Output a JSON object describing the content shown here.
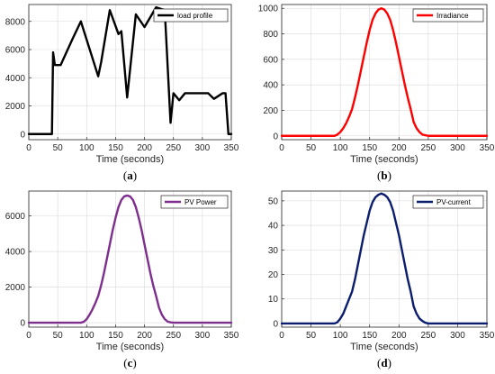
{
  "chart_data": [
    {
      "type": "line",
      "panel_label": "a",
      "xlabel": "Time (seconds)",
      "ylabel": "",
      "xlim": [
        0,
        350
      ],
      "ylim": [
        -400,
        9200
      ],
      "xticks": [
        0,
        50,
        100,
        150,
        200,
        250,
        300,
        350
      ],
      "yticks": [
        0,
        2000,
        4000,
        6000,
        8000
      ],
      "grid": true,
      "legend": "top-right",
      "series": [
        {
          "name": "load profile",
          "color": "#000000",
          "x": [
            0,
            40,
            42,
            45,
            48,
            55,
            75,
            90,
            120,
            125,
            140,
            155,
            160,
            170,
            185,
            200,
            220,
            235,
            245,
            250,
            260,
            270,
            310,
            320,
            335,
            340,
            345,
            350
          ],
          "y": [
            0,
            0,
            5800,
            4900,
            4900,
            4900,
            6700,
            8000,
            4100,
            5100,
            8800,
            7100,
            7300,
            2600,
            8500,
            7600,
            9000,
            8800,
            800,
            2900,
            2400,
            2900,
            2900,
            2500,
            2900,
            2900,
            0,
            0
          ]
        }
      ]
    },
    {
      "type": "line",
      "panel_label": "b",
      "xlabel": "Time (seconds)",
      "ylabel": "",
      "xlim": [
        0,
        350
      ],
      "ylim": [
        -30,
        1030
      ],
      "xticks": [
        0,
        50,
        100,
        150,
        200,
        250,
        300,
        350
      ],
      "yticks": [
        0,
        200,
        400,
        600,
        800,
        1000
      ],
      "grid": true,
      "legend": "top-right",
      "series": [
        {
          "name": "Irradiance",
          "color": "#ff0000",
          "x": [
            0,
            90,
            95,
            100,
            105,
            110,
            115,
            120,
            125,
            130,
            135,
            140,
            145,
            150,
            155,
            160,
            165,
            170,
            175,
            180,
            185,
            190,
            195,
            200,
            205,
            210,
            215,
            220,
            225,
            230,
            235,
            240,
            245,
            250,
            255,
            260,
            350
          ],
          "y": [
            0,
            0,
            10,
            30,
            60,
            100,
            150,
            210,
            300,
            400,
            510,
            620,
            730,
            830,
            910,
            960,
            990,
            1000,
            990,
            960,
            910,
            830,
            730,
            620,
            510,
            400,
            300,
            210,
            110,
            60,
            30,
            10,
            5,
            0,
            0,
            0,
            0
          ]
        }
      ]
    },
    {
      "type": "line",
      "panel_label": "c",
      "xlabel": "Time (seconds)",
      "ylabel": "",
      "xlim": [
        0,
        350
      ],
      "ylim": [
        -250,
        7400
      ],
      "xticks": [
        0,
        50,
        100,
        150,
        200,
        250,
        300,
        350
      ],
      "yticks": [
        0,
        2000,
        4000,
        6000
      ],
      "grid": true,
      "legend": "top-right",
      "series": [
        {
          "name": "PV Power",
          "color": "#7e2f8e",
          "x": [
            0,
            90,
            95,
            100,
            105,
            110,
            115,
            120,
            125,
            130,
            135,
            140,
            145,
            150,
            155,
            160,
            165,
            170,
            175,
            180,
            185,
            190,
            195,
            200,
            205,
            210,
            215,
            220,
            225,
            230,
            235,
            240,
            245,
            250,
            255,
            260,
            350
          ],
          "y": [
            0,
            0,
            50,
            200,
            450,
            750,
            1100,
            1500,
            2100,
            2800,
            3600,
            4400,
            5200,
            5900,
            6500,
            6900,
            7100,
            7150,
            7100,
            6900,
            6500,
            5900,
            5200,
            4400,
            3600,
            2800,
            2100,
            1500,
            850,
            450,
            200,
            60,
            20,
            0,
            0,
            0,
            0
          ]
        }
      ]
    },
    {
      "type": "line",
      "panel_label": "d",
      "xlabel": "Time (seconds)",
      "ylabel": "",
      "xlim": [
        0,
        350
      ],
      "ylim": [
        -1.5,
        54
      ],
      "xticks": [
        0,
        50,
        100,
        150,
        200,
        250,
        300,
        350
      ],
      "yticks": [
        0,
        10,
        20,
        30,
        40,
        50
      ],
      "grid": true,
      "legend": "top-right",
      "series": [
        {
          "name": "PV-current",
          "color": "#0b1d6e",
          "x": [
            0,
            90,
            95,
            100,
            105,
            110,
            115,
            120,
            125,
            130,
            135,
            140,
            145,
            150,
            155,
            160,
            165,
            170,
            175,
            180,
            185,
            190,
            195,
            200,
            205,
            210,
            215,
            220,
            225,
            230,
            235,
            240,
            245,
            250,
            255,
            260,
            350
          ],
          "y": [
            0,
            0,
            0.5,
            2,
            4,
            7,
            10,
            13,
            18,
            24,
            30,
            36,
            41,
            46,
            49.5,
            51.5,
            52.5,
            53,
            52.5,
            51.5,
            49.5,
            46,
            41,
            36,
            30,
            24,
            18,
            13,
            7,
            4,
            2,
            1,
            0.3,
            0,
            0,
            0,
            0
          ]
        }
      ]
    }
  ]
}
